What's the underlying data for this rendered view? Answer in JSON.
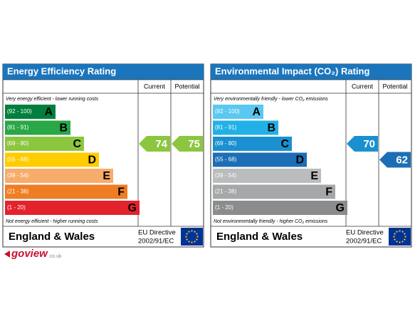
{
  "panels": [
    {
      "title": "Energy Efficiency Rating",
      "col_current": "Current",
      "col_potential": "Potential",
      "top_note": "Very energy efficient - lower running costs",
      "bottom_note": "Not energy efficient - higher running costs",
      "bands": [
        {
          "range": "(92 - 100)",
          "letter": "A",
          "color": "#007f3d"
        },
        {
          "range": "(81 - 91)",
          "letter": "B",
          "color": "#2aa747"
        },
        {
          "range": "(69 - 80)",
          "letter": "C",
          "color": "#8cc63f"
        },
        {
          "range": "(55 - 68)",
          "letter": "D",
          "color": "#ffcc00"
        },
        {
          "range": "(39 - 54)",
          "letter": "E",
          "color": "#f7ac6b"
        },
        {
          "range": "(21 - 38)",
          "letter": "F",
          "color": "#ef7d24"
        },
        {
          "range": "(1 - 20)",
          "letter": "G",
          "color": "#e4222c"
        }
      ],
      "current": 74,
      "potential": 75,
      "region": "England & Wales",
      "directive": [
        "EU Directive",
        "2002/91/EC"
      ]
    },
    {
      "title": "Environmental Impact (CO₂) Rating",
      "col_current": "Current",
      "col_potential": "Potential",
      "top_note": "Very environmentally friendly - lower CO₂ emissions",
      "bottom_note": "Not environmentally friendly - higher CO₂ emissions",
      "bands": [
        {
          "range": "(92 - 100)",
          "letter": "A",
          "color": "#5ac8f0"
        },
        {
          "range": "(81 - 91)",
          "letter": "B",
          "color": "#22b1e6"
        },
        {
          "range": "(69 - 80)",
          "letter": "C",
          "color": "#1a90d0"
        },
        {
          "range": "(55 - 68)",
          "letter": "D",
          "color": "#1d6fb5"
        },
        {
          "range": "(39 - 54)",
          "letter": "E",
          "color": "#bbbcbe"
        },
        {
          "range": "(21 - 38)",
          "letter": "F",
          "color": "#a6a7a9"
        },
        {
          "range": "(1 - 20)",
          "letter": "G",
          "color": "#8b8c8e"
        }
      ],
      "current": 70,
      "potential": 62,
      "region": "England & Wales",
      "directive": [
        "EU Directive",
        "2002/91/EC"
      ]
    }
  ],
  "logo": "goview",
  "logo_suffix": ".co.uk"
}
